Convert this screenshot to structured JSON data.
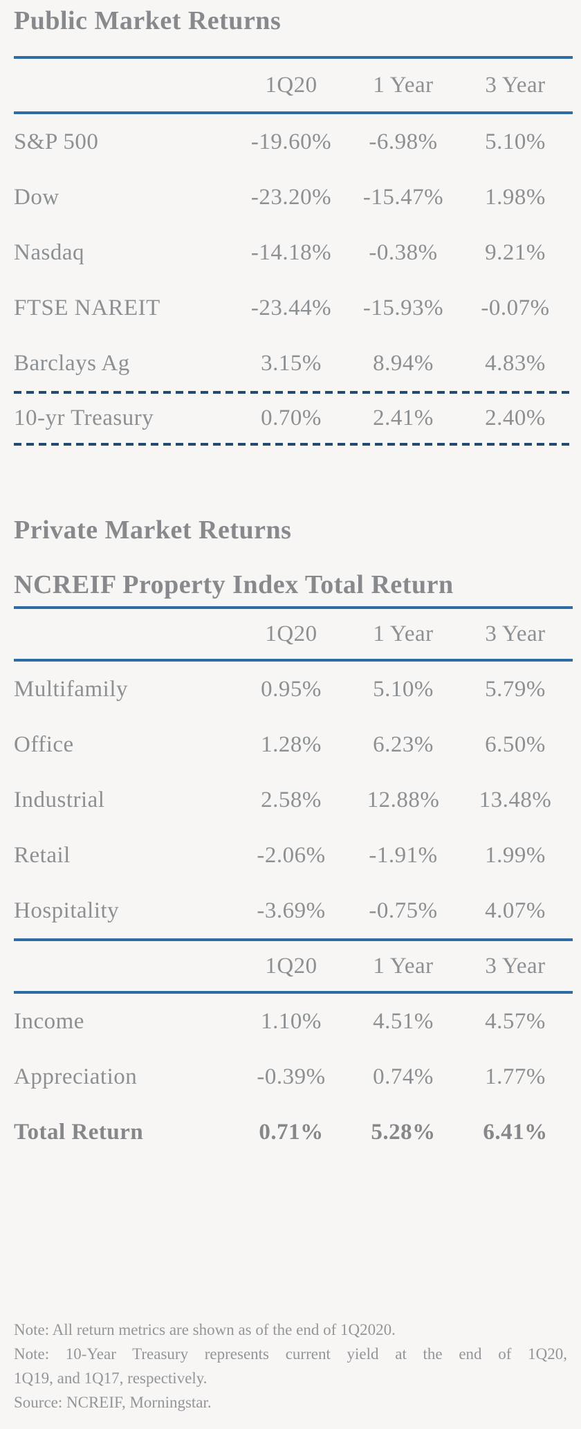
{
  "page": {
    "background_color": "#f7f6f4",
    "text_color": "#8d9093",
    "accent_rule_color": "#2e6da4",
    "dashed_rule_color": "#264a6e"
  },
  "public_section": {
    "title": "Public Market Returns",
    "columns": [
      "1Q20",
      "1 Year",
      "3 Year"
    ],
    "rows": [
      {
        "label": "S&P 500",
        "values": [
          "-19.60%",
          "-6.98%",
          "5.10%"
        ]
      },
      {
        "label": "Dow",
        "values": [
          "-23.20%",
          "-15.47%",
          "1.98%"
        ]
      },
      {
        "label": "Nasdaq",
        "values": [
          "-14.18%",
          "-0.38%",
          "9.21%"
        ]
      },
      {
        "label": "FTSE NAREIT",
        "values": [
          "-23.44%",
          "-15.93%",
          "-0.07%"
        ]
      },
      {
        "label": "Barclays Ag",
        "values": [
          "3.15%",
          "8.94%",
          "4.83%"
        ]
      }
    ],
    "treasury_row": {
      "label": "10-yr Treasury",
      "values": [
        "0.70%",
        "2.41%",
        "2.40%"
      ]
    }
  },
  "private_section": {
    "title": "Private Market Returns",
    "subtitle": "NCREIF Property Index Total Return",
    "columns": [
      "1Q20",
      "1 Year",
      "3 Year"
    ],
    "property_rows": [
      {
        "label": "Multifamily",
        "values": [
          "0.95%",
          "5.10%",
          "5.79%"
        ]
      },
      {
        "label": "Office",
        "values": [
          "1.28%",
          "6.23%",
          "6.50%"
        ]
      },
      {
        "label": "Industrial",
        "values": [
          "2.58%",
          "12.88%",
          "13.48%"
        ]
      },
      {
        "label": "Retail",
        "values": [
          "-2.06%",
          "-1.91%",
          "1.99%"
        ]
      },
      {
        "label": "Hospitality",
        "values": [
          "-3.69%",
          "-0.75%",
          "4.07%"
        ]
      }
    ],
    "columns2": [
      "1Q20",
      "1 Year",
      "3 Year"
    ],
    "component_rows": [
      {
        "label": "Income",
        "values": [
          "1.10%",
          "4.51%",
          "4.57%"
        ]
      },
      {
        "label": "Appreciation",
        "values": [
          "-0.39%",
          "0.74%",
          "1.77%"
        ]
      },
      {
        "label": "Total Return",
        "values": [
          "0.71%",
          "5.28%",
          "6.41%"
        ]
      }
    ]
  },
  "footnotes": {
    "note1": "Note: All return metrics are shown as of the end of 1Q2020.",
    "note2_line1": "Note: 10-Year Treasury represents current yield at the end of 1Q20,",
    "note2_line2": "1Q19, and 1Q17, respectively.",
    "source": "Source: NCREIF, Morningstar."
  }
}
